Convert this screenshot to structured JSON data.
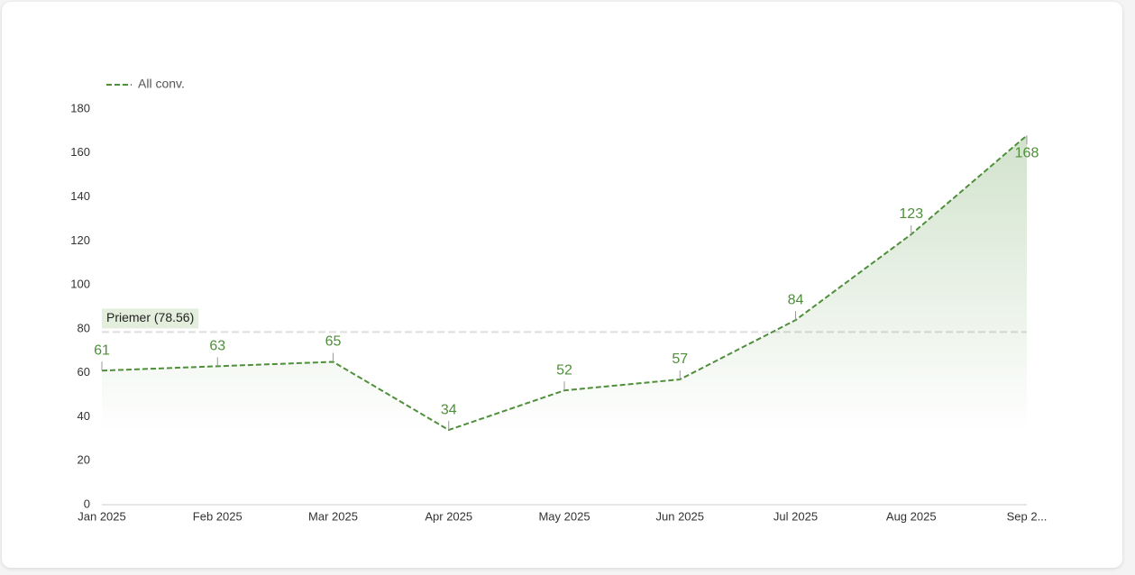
{
  "chart_data": {
    "type": "line",
    "categories": [
      "Jan 2025",
      "Feb 2025",
      "Mar 2025",
      "Apr 2025",
      "May 2025",
      "Jun 2025",
      "Jul 2025",
      "Aug 2025",
      "Sep 2..."
    ],
    "series": [
      {
        "name": "All conv.",
        "color": "#4e8f3a",
        "values": [
          61,
          63,
          65,
          34,
          52,
          57,
          84,
          123,
          168
        ]
      }
    ],
    "ylim": [
      0,
      180
    ],
    "yticks": [
      0,
      20,
      40,
      60,
      80,
      100,
      120,
      140,
      160,
      180
    ],
    "reference_line": {
      "value": 78.56,
      "label": "Priemer (78.56)"
    },
    "grid": false
  }
}
